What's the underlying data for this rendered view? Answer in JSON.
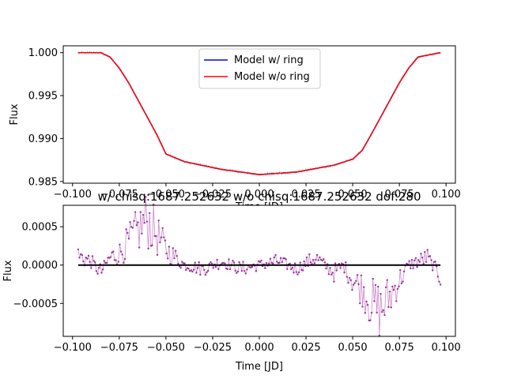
{
  "chart_data": [
    {
      "type": "line",
      "title": "",
      "xlabel": "Time [JD]",
      "ylabel": "Flux",
      "xlim": [
        -0.105,
        0.105
      ],
      "ylim": [
        0.9848,
        1.0008
      ],
      "xticks": [
        -0.1,
        -0.075,
        -0.05,
        -0.025,
        0.0,
        0.025,
        0.05,
        0.075,
        0.1
      ],
      "xtick_labels": [
        "−0.100",
        "−0.075",
        "−0.050",
        "−0.025",
        "0.000",
        "0.025",
        "0.050",
        "0.075",
        "0.100"
      ],
      "yticks": [
        0.985,
        0.99,
        0.995,
        1.0
      ],
      "ytick_labels": [
        "0.985",
        "0.990",
        "0.995",
        "1.000"
      ],
      "legend_position": "top-center",
      "colors": {
        "model_ring": "#0000ff",
        "model_noring": "#ff0000",
        "data": "#808080"
      },
      "series": [
        {
          "name": "Model w/ ring",
          "x": [
            -0.097,
            -0.085,
            -0.08,
            -0.075,
            -0.07,
            -0.065,
            -0.06,
            -0.055,
            -0.05,
            -0.04,
            -0.02,
            0.0,
            0.02,
            0.04,
            0.05,
            0.055,
            0.06,
            0.065,
            0.07,
            0.075,
            0.08,
            0.085,
            0.097
          ],
          "y": [
            1.0,
            1.0,
            0.9995,
            0.9982,
            0.9965,
            0.9945,
            0.9925,
            0.9905,
            0.9882,
            0.9873,
            0.9864,
            0.9858,
            0.9861,
            0.9869,
            0.9876,
            0.9886,
            0.9905,
            0.9925,
            0.9945,
            0.9965,
            0.9982,
            0.9995,
            1.0
          ]
        },
        {
          "name": "Model w/o ring",
          "x": [
            -0.097,
            -0.085,
            -0.08,
            -0.075,
            -0.07,
            -0.065,
            -0.06,
            -0.055,
            -0.05,
            -0.04,
            -0.02,
            0.0,
            0.02,
            0.04,
            0.05,
            0.055,
            0.06,
            0.065,
            0.07,
            0.075,
            0.08,
            0.085,
            0.097
          ],
          "y": [
            1.0,
            1.0,
            0.9995,
            0.9982,
            0.9965,
            0.9945,
            0.9925,
            0.9905,
            0.9882,
            0.9873,
            0.9864,
            0.9858,
            0.9861,
            0.9869,
            0.9876,
            0.9886,
            0.9905,
            0.9925,
            0.9945,
            0.9965,
            0.9982,
            0.9995,
            1.0
          ]
        }
      ]
    },
    {
      "type": "line",
      "title": "w/ chisq:1687.252632 w/o chisq:1687.252632 dof:280",
      "xlabel": "Time [JD]",
      "ylabel": "Flux",
      "xlim": [
        -0.105,
        0.105
      ],
      "ylim": [
        -0.00093,
        0.00078
      ],
      "xticks": [
        -0.1,
        -0.075,
        -0.05,
        -0.025,
        0.0,
        0.025,
        0.05,
        0.075,
        0.1
      ],
      "xtick_labels": [
        "−0.100",
        "−0.075",
        "−0.050",
        "−0.025",
        "0.000",
        "0.025",
        "0.050",
        "0.075",
        "0.100"
      ],
      "yticks": [
        -0.0005,
        0.0,
        0.0005
      ],
      "ytick_labels": [
        "−0.0005",
        "0.0000",
        "0.0005"
      ],
      "colors": {
        "residual_line": "#cc88cc",
        "residual_points": "#993399",
        "zero_line": "#000000"
      },
      "series": [
        {
          "name": "residuals",
          "x": [
            -0.097,
            -0.09,
            -0.085,
            -0.08,
            -0.075,
            -0.07,
            -0.065,
            -0.06,
            -0.055,
            -0.05,
            -0.045,
            -0.04,
            -0.03,
            -0.02,
            -0.01,
            0.0,
            0.01,
            0.02,
            0.03,
            0.04,
            0.045,
            0.05,
            0.055,
            0.06,
            0.065,
            0.07,
            0.075,
            0.08,
            0.09,
            0.097
          ],
          "y": [
            0.00012,
            5e-05,
            -0.0001,
            0.0001,
            0.00015,
            0.0003,
            0.00045,
            0.0006,
            0.0004,
            0.0002,
            0.0001,
            0.0,
            -5e-05,
            5e-05,
            -5e-05,
            0.0,
            5e-05,
            -5e-05,
            0.0001,
            -0.0001,
            0.0,
            -0.0002,
            -0.0003,
            -0.0005,
            -0.0006,
            -0.0004,
            -0.0002,
            0.0,
            0.0001,
            -0.00015
          ]
        },
        {
          "name": "zero",
          "x": [
            -0.097,
            0.097
          ],
          "y": [
            0.0,
            0.0
          ]
        }
      ]
    }
  ]
}
